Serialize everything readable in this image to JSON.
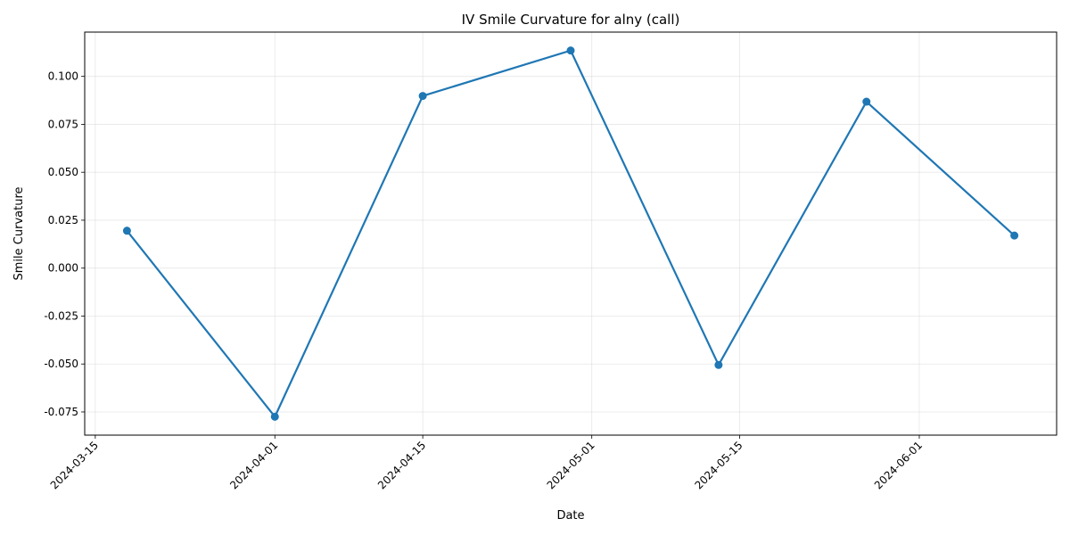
{
  "chart_data": {
    "type": "line",
    "title": "IV Smile Curvature for alny (call)",
    "xlabel": "Date",
    "ylabel": "Smile Curvature",
    "x": [
      "2024-03-18",
      "2024-04-01",
      "2024-04-15",
      "2024-04-29",
      "2024-05-13",
      "2024-05-27",
      "2024-06-10"
    ],
    "series": [
      {
        "values": [
          0.0195,
          -0.0775,
          0.0898,
          0.1135,
          -0.0505,
          0.0868,
          0.017
        ],
        "color": "#1f77b4"
      }
    ],
    "x_ticks": [
      "2024-03-15",
      "2024-04-01",
      "2024-04-15",
      "2024-05-01",
      "2024-05-15",
      "2024-06-01"
    ],
    "xlim": [
      "2024-03-14",
      "2024-06-14"
    ],
    "y_ticks": [
      "-0.075",
      "-0.050",
      "-0.025",
      "0.000",
      "0.025",
      "0.050",
      "0.075",
      "0.100"
    ],
    "ylim": [
      -0.0871,
      0.1231
    ],
    "grid": true,
    "x_tick_rotation": 45,
    "marker": "circle"
  }
}
